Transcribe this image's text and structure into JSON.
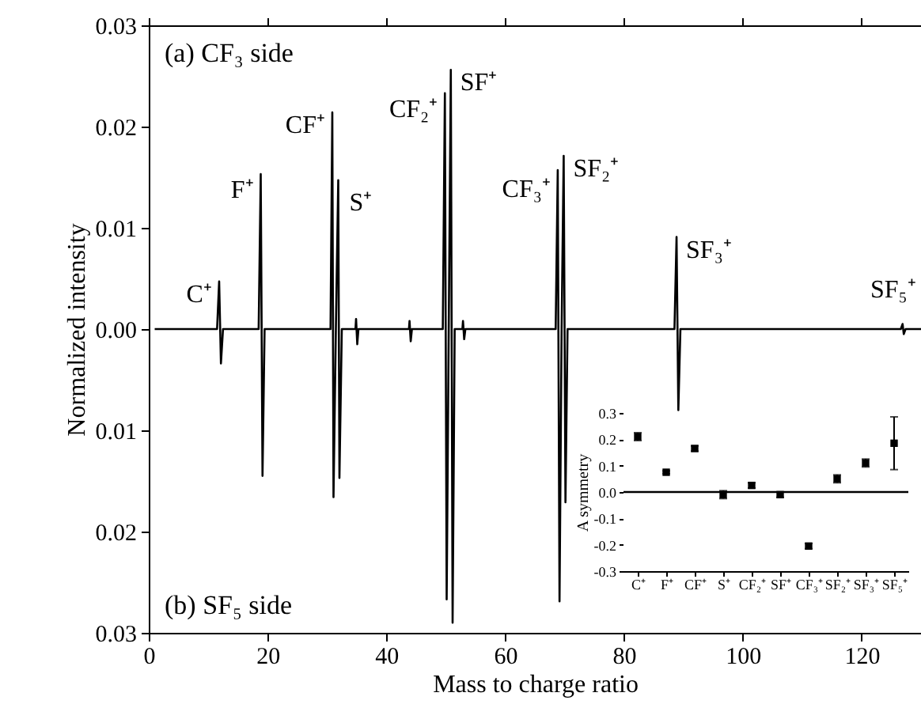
{
  "chart_data": [
    {
      "type": "line",
      "xlabel": "Mass to charge ratio",
      "ylabel": "Normalized intensity",
      "xlim": [
        0,
        130
      ],
      "xticks": [
        0,
        20,
        40,
        60,
        80,
        100,
        120
      ],
      "ylim": [
        -0.03,
        0.03
      ],
      "yticks": [
        {
          "value": -0.03,
          "label": "0.03"
        },
        {
          "value": -0.02,
          "label": "0.02"
        },
        {
          "value": -0.01,
          "label": "0.01"
        },
        {
          "value": 0,
          "label": "0.00"
        },
        {
          "value": 0.01,
          "label": "0.01"
        },
        {
          "value": 0.02,
          "label": "0.02"
        },
        {
          "value": 0.03,
          "label": "0.03"
        }
      ],
      "grid": false,
      "series": [
        {
          "color": "#000000",
          "x": [
            1,
            11.5,
            11.85,
            12.15,
            12.5,
            18.5,
            18.85,
            19.15,
            19.5,
            30.6,
            30.9,
            31.1,
            31.5,
            31.9,
            32.1,
            32.5,
            34.8,
            34.9,
            35.1,
            35.3,
            43.8,
            43.9,
            44.1,
            44.3,
            49.5,
            49.85,
            50.15,
            50.5,
            50.85,
            51.15,
            51.5,
            52.8,
            52.9,
            53.1,
            53.3,
            68.5,
            68.85,
            69.15,
            69.5,
            69.85,
            70.15,
            70.5,
            88.5,
            88.85,
            89.15,
            89.5,
            126.6,
            126.9,
            127.1,
            127.4,
            130
          ],
          "values": [
            0,
            0,
            0.0047,
            -0.0034,
            0,
            0,
            0.0153,
            -0.0145,
            0,
            0,
            0.0214,
            -0.0166,
            0,
            0.0147,
            -0.0147,
            0,
            0,
            0.001,
            -0.0015,
            0,
            0,
            0.0008,
            -0.0012,
            0,
            0,
            0.0233,
            -0.0267,
            0,
            0.0256,
            -0.029,
            0,
            0,
            0.0008,
            -0.001,
            0,
            0,
            0.0157,
            -0.0269,
            0,
            0.0171,
            -0.0171,
            0,
            0,
            0.0091,
            -0.008,
            0,
            0,
            0.0005,
            -0.0005,
            0,
            0
          ]
        }
      ],
      "annotations": [
        "(a) CF₃ side",
        "(b) SF₅ side",
        {
          "text": "C⁺",
          "x": 11.85,
          "y": 0.0047
        },
        {
          "text": "F⁺",
          "x": 18.85,
          "y": 0.0153
        },
        {
          "text": "CF⁺",
          "x": 30.9,
          "y": 0.0214
        },
        {
          "text": "S⁺",
          "x": 31.9,
          "y": 0.0147
        },
        {
          "text": "CF₂⁺",
          "x": 49.85,
          "y": 0.0233
        },
        {
          "text": "SF⁺",
          "x": 50.85,
          "y": 0.0256
        },
        {
          "text": "CF₃⁺",
          "x": 68.85,
          "y": 0.0157
        },
        {
          "text": "SF₂⁺",
          "x": 69.85,
          "y": 0.0171
        },
        {
          "text": "SF₃⁺",
          "x": 88.85,
          "y": 0.0091
        },
        {
          "text": "SF₅⁺",
          "x": 126.9,
          "y": 0.0005
        }
      ]
    },
    {
      "type": "scatter",
      "ylabel": "A symmetry",
      "marker": "square",
      "categories": [
        "C⁺",
        "F⁺",
        "CF⁺",
        "S⁺",
        "CF₂⁺",
        "SF⁺",
        "CF₃⁺",
        "SF₂⁺",
        "SF₃⁺",
        "SF₅⁺"
      ],
      "values": [
        0.21,
        0.075,
        0.165,
        -0.01,
        0.025,
        -0.01,
        -0.205,
        0.05,
        0.11,
        0.185
      ],
      "errors": [
        0.015,
        0.005,
        0.01,
        0.015,
        0.01,
        0.01,
        0.01,
        0.015,
        0.015,
        0.1
      ],
      "color": "#000000",
      "ylim": [
        -0.3,
        0.3
      ],
      "yticks": [
        {
          "value": -0.3,
          "label": "-0.3"
        },
        {
          "value": -0.2,
          "label": "-0.2"
        },
        {
          "value": -0.1,
          "label": "-0.1"
        },
        {
          "value": 0,
          "label": "0.0"
        },
        {
          "value": 0.1,
          "label": "0.1"
        },
        {
          "value": 0.2,
          "label": "0.2"
        },
        {
          "value": 0.3,
          "label": "0.3"
        }
      ],
      "ref_lines": [
        {
          "axis": "y",
          "value": 0,
          "color": "#000000"
        }
      ],
      "grid": false
    }
  ]
}
